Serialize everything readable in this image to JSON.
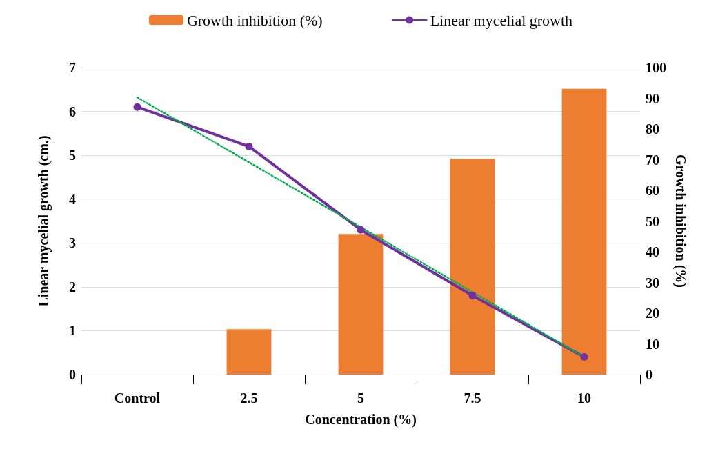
{
  "chart_data": {
    "type": "bar",
    "xlabel": "Concentration (%)",
    "ylabel": "Linear mycelial growth (cm.)",
    "y2label": "Growth inhibition (%)",
    "categories": [
      "Control",
      "2.5",
      "5",
      "7.5",
      "10"
    ],
    "series": [
      {
        "name": "Growth inhibition (%)",
        "axis": "y2",
        "color": "#ed7d31",
        "values": [
          0,
          14.8,
          45.8,
          70.3,
          93.1
        ]
      },
      {
        "name": "Linear mycelial growth",
        "type": "line",
        "color": "#7030a0",
        "marker": "circle",
        "line_style": "solid",
        "values": [
          6.1,
          5.2,
          3.3,
          1.8,
          0.4
        ]
      },
      {
        "type": "line",
        "color": "#00b050",
        "marker": "none",
        "line_style": "dotted",
        "values": [
          6.32,
          4.84,
          3.36,
          1.88,
          0.4
        ]
      }
    ],
    "ylim": [
      0,
      7
    ],
    "yticks": [
      0,
      1,
      2,
      3,
      4,
      5,
      6,
      7
    ],
    "y2lim": [
      0,
      100
    ],
    "y2ticks": [
      0,
      10,
      20,
      30,
      40,
      50,
      60,
      70,
      80,
      90,
      100
    ],
    "grid": "y",
    "legend": "top"
  }
}
